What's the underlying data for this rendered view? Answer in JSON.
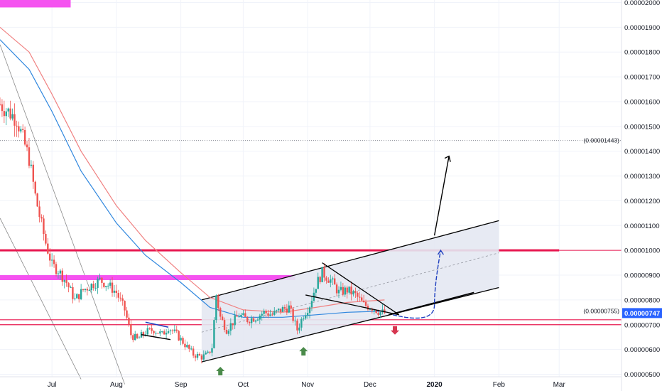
{
  "colors": {
    "up": "#26a69a",
    "down": "#ef5350",
    "red_ma": "#f08080",
    "blue_ma": "#2e86de",
    "level_red": "#e8174f",
    "magenta": "#f553f0",
    "channel_fill": "#e4e8f2",
    "price_badge": "#2962ff",
    "green_arrow": "#4a8a4a",
    "red_arrow": "#d6354f",
    "projection_blue": "#1e3fbf"
  },
  "chart_data": {
    "type": "candlestick",
    "ylabel": "",
    "ylim": [
      4.9e-06,
      2.01e-05
    ],
    "y_ticks": [
      {
        "value": 5e-06,
        "label": "0.00000500"
      },
      {
        "value": 6e-06,
        "label": "0.00000600"
      },
      {
        "value": 7e-06,
        "label": "0.00000700"
      },
      {
        "value": 8e-06,
        "label": "0.00000800"
      },
      {
        "value": 9e-06,
        "label": "0.00000900"
      },
      {
        "value": 1e-05,
        "label": "0.00001000"
      },
      {
        "value": 1.1e-05,
        "label": "0.00001100"
      },
      {
        "value": 1.2e-05,
        "label": "0.00001200"
      },
      {
        "value": 1.3e-05,
        "label": "0.00001300"
      },
      {
        "value": 1.4e-05,
        "label": "0.00001400"
      },
      {
        "value": 1.5e-05,
        "label": "0.00001500"
      },
      {
        "value": 1.6e-05,
        "label": "0.00001600"
      },
      {
        "value": 1.7e-05,
        "label": "0.00001700"
      },
      {
        "value": 1.8e-05,
        "label": "0.00001800"
      },
      {
        "value": 1.9e-05,
        "label": "0.00001900"
      },
      {
        "value": 2e-05,
        "label": "0.00002000"
      }
    ],
    "x_ticks": [
      {
        "date": "2019-07-01",
        "label": "Jul",
        "bold": false
      },
      {
        "date": "2019-08-01",
        "label": "Aug",
        "bold": false
      },
      {
        "date": "2019-09-01",
        "label": "Sep",
        "bold": false
      },
      {
        "date": "2019-10-01",
        "label": "Oct",
        "bold": false
      },
      {
        "date": "2019-11-01",
        "label": "Nov",
        "bold": false
      },
      {
        "date": "2019-12-01",
        "label": "Dec",
        "bold": false
      },
      {
        "date": "2020-01-01",
        "label": "2020",
        "bold": true
      },
      {
        "date": "2020-02-01",
        "label": "Feb",
        "bold": false
      },
      {
        "date": "2020-03-01",
        "label": "Mar",
        "bold": false
      }
    ],
    "xlim": [
      "2019-06-06",
      "2020-03-31"
    ],
    "price_label": "0.00000747",
    "price_line_value": 7.47e-06,
    "hline_labels": [
      {
        "value": 1.443e-05,
        "label": "(0.00001443)"
      },
      {
        "value": 7.55e-06,
        "label": "(0.00000755)"
      }
    ],
    "price_path": [
      [
        "2019-06-06",
        1.59e-05
      ],
      [
        "2019-06-10",
        1.56e-05
      ],
      [
        "2019-06-14",
        1.53e-05
      ],
      [
        "2019-06-17",
        1.45e-05
      ],
      [
        "2019-06-20",
        1.37e-05
      ],
      [
        "2019-06-23",
        1.22e-05
      ],
      [
        "2019-06-25",
        1.14e-05
      ],
      [
        "2019-06-28",
        1.03e-05
      ],
      [
        "2019-07-01",
        9.4e-06
      ],
      [
        "2019-07-04",
        9.2e-06
      ],
      [
        "2019-07-08",
        8.7e-06
      ],
      [
        "2019-07-12",
        8e-06
      ],
      [
        "2019-07-16",
        8.4e-06
      ],
      [
        "2019-07-20",
        8.6e-06
      ],
      [
        "2019-07-24",
        8.8e-06
      ],
      [
        "2019-07-28",
        8.6e-06
      ],
      [
        "2019-08-01",
        8.3e-06
      ],
      [
        "2019-08-05",
        7.6e-06
      ],
      [
        "2019-08-08",
        6.6e-06
      ],
      [
        "2019-08-11",
        6.4e-06
      ],
      [
        "2019-08-15",
        6.7e-06
      ],
      [
        "2019-08-19",
        6.8e-06
      ],
      [
        "2019-08-23",
        6.6e-06
      ],
      [
        "2019-08-26",
        6.9e-06
      ],
      [
        "2019-08-30",
        6.6e-06
      ],
      [
        "2019-09-03",
        6.2e-06
      ],
      [
        "2019-09-07",
        5.8e-06
      ],
      [
        "2019-09-11",
        5.7e-06
      ],
      [
        "2019-09-14",
        5.8e-06
      ],
      [
        "2019-09-16",
        6.1e-06
      ],
      [
        "2019-09-18",
        8.2e-06
      ],
      [
        "2019-09-20",
        7.3e-06
      ],
      [
        "2019-09-23",
        6.8e-06
      ],
      [
        "2019-09-26",
        7.1e-06
      ],
      [
        "2019-09-29",
        7.4e-06
      ],
      [
        "2019-10-03",
        7.2e-06
      ],
      [
        "2019-10-07",
        7.3e-06
      ],
      [
        "2019-10-11",
        7.5e-06
      ],
      [
        "2019-10-15",
        7.4e-06
      ],
      [
        "2019-10-19",
        7.6e-06
      ],
      [
        "2019-10-23",
        7.7e-06
      ],
      [
        "2019-10-27",
        6.8e-06
      ],
      [
        "2019-10-30",
        7.4e-06
      ],
      [
        "2019-11-02",
        7.8e-06
      ],
      [
        "2019-11-05",
        8.6e-06
      ],
      [
        "2019-11-08",
        9.1e-06
      ],
      [
        "2019-11-12",
        8.8e-06
      ],
      [
        "2019-11-16",
        8.3e-06
      ],
      [
        "2019-11-20",
        8.4e-06
      ],
      [
        "2019-11-24",
        8.2e-06
      ],
      [
        "2019-11-28",
        7.8e-06
      ],
      [
        "2019-12-02",
        7.7e-06
      ],
      [
        "2019-12-06",
        7.5e-06
      ],
      [
        "2019-12-08",
        7.47e-06
      ]
    ],
    "ma_red": [
      [
        "2019-06-06",
        1.9e-05
      ],
      [
        "2019-06-20",
        1.8e-05
      ],
      [
        "2019-07-01",
        1.63e-05
      ],
      [
        "2019-07-15",
        1.4e-05
      ],
      [
        "2019-08-01",
        1.18e-05
      ],
      [
        "2019-08-15",
        1.04e-05
      ],
      [
        "2019-09-01",
        9.1e-06
      ],
      [
        "2019-09-15",
        8.1e-06
      ],
      [
        "2019-10-01",
        7.6e-06
      ],
      [
        "2019-10-20",
        7.5e-06
      ],
      [
        "2019-11-05",
        7.7e-06
      ],
      [
        "2019-11-20",
        7.9e-06
      ],
      [
        "2019-12-08",
        8e-06
      ]
    ],
    "ma_blue": [
      [
        "2019-06-06",
        1.85e-05
      ],
      [
        "2019-06-20",
        1.73e-05
      ],
      [
        "2019-07-01",
        1.56e-05
      ],
      [
        "2019-07-15",
        1.32e-05
      ],
      [
        "2019-08-01",
        1.11e-05
      ],
      [
        "2019-08-15",
        9.8e-06
      ],
      [
        "2019-09-01",
        8.7e-06
      ],
      [
        "2019-09-15",
        7.7e-06
      ],
      [
        "2019-10-01",
        7.3e-06
      ],
      [
        "2019-10-20",
        7.3e-06
      ],
      [
        "2019-11-05",
        7.4e-06
      ],
      [
        "2019-11-20",
        7.5e-06
      ],
      [
        "2019-12-08",
        7.55e-06
      ]
    ],
    "horizontal_levels": [
      {
        "value": 1e-05,
        "style": "red-thick"
      },
      {
        "value": 7.2e-06,
        "style": "red-thin"
      },
      {
        "value": 7e-06,
        "style": "red-thin"
      }
    ],
    "zones": [
      {
        "x0": "2019-06-06",
        "x1": "2019-07-10",
        "y0": 1.98e-05,
        "y1": 2.06e-05,
        "color_key": "magenta"
      },
      {
        "x0": "2019-06-06",
        "x1": "2019-10-26",
        "y0": 8.8e-06,
        "y1": 9e-06,
        "color_key": "magenta"
      }
    ],
    "channel": {
      "lower": [
        [
          "2019-09-11",
          5.5e-06
        ],
        [
          "2020-02-01",
          8.5e-06
        ]
      ],
      "upper": [
        [
          "2019-09-11",
          8e-06
        ],
        [
          "2020-02-01",
          1.12e-05
        ]
      ],
      "mid": [
        [
          "2019-09-11",
          6.7e-06
        ],
        [
          "2020-02-01",
          9.9e-06
        ]
      ]
    },
    "triangle": {
      "top": [
        [
          "2019-11-08",
          9.5e-06
        ],
        [
          "2019-12-15",
          7.4e-06
        ]
      ],
      "bottom": [
        [
          "2019-10-31",
          8.2e-06
        ],
        [
          "2019-12-15",
          7.4e-06
        ]
      ]
    },
    "bull_flag": {
      "top": [
        [
          "2019-08-15",
          7.1e-06
        ],
        [
          "2019-08-26",
          6.9e-06
        ]
      ],
      "bottom": [
        [
          "2019-08-13",
          6.6e-06
        ],
        [
          "2019-08-27",
          6.4e-06
        ]
      ]
    },
    "support_segment": [
      [
        "2019-12-10",
        7.4e-06
      ],
      [
        "2020-01-20",
        8.3e-06
      ]
    ],
    "projection_curve": [
      [
        "2019-12-12",
        7.4e-06
      ],
      [
        "2020-01-01",
        7.8e-06
      ],
      [
        "2020-01-04",
        1e-05
      ]
    ],
    "target_arrow": [
      [
        "2020-01-01",
        1.06e-05
      ],
      [
        "2020-01-08",
        1.38e-05
      ]
    ],
    "green_arrows": [
      [
        "2019-09-20",
        5.1e-06
      ],
      [
        "2019-10-30",
        5.9e-06
      ]
    ],
    "red_arrow": [
      "2019-12-13",
      6.8e-06
    ]
  }
}
